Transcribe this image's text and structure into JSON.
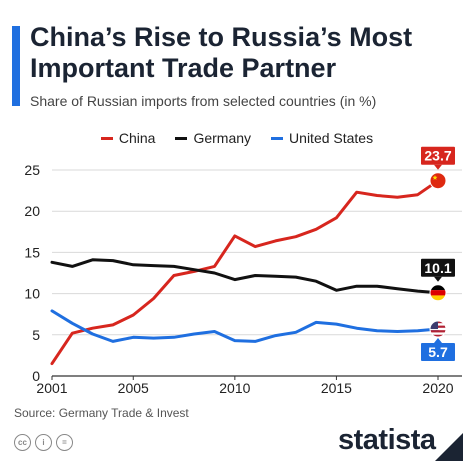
{
  "header": {
    "title": "China’s Rise to Russia’s Most Important Trade Partner",
    "subtitle": "Share of Russian imports from selected countries (in %)"
  },
  "footer": {
    "source": "Source: Germany Trade & Invest",
    "brand": "statista",
    "license_icons": [
      "creative-commons-icon",
      "attribution-icon",
      "no-derivatives-icon"
    ],
    "license_glyphs": [
      "cc",
      "i",
      "="
    ]
  },
  "chart_data": {
    "type": "line",
    "x": [
      2001,
      2002,
      2003,
      2004,
      2005,
      2006,
      2007,
      2008,
      2009,
      2010,
      2011,
      2012,
      2013,
      2014,
      2015,
      2016,
      2017,
      2018,
      2019,
      2020
    ],
    "series": [
      {
        "name": "China",
        "color": "#d7261e",
        "values": [
          1.5,
          5.2,
          5.8,
          6.2,
          7.4,
          9.4,
          12.2,
          12.7,
          13.3,
          17.0,
          15.7,
          16.4,
          16.9,
          17.8,
          19.2,
          22.3,
          21.9,
          21.7,
          22.0,
          23.7
        ],
        "end_label": "23.7",
        "flag": "china-flag-icon"
      },
      {
        "name": "Germany",
        "color": "#111111",
        "values": [
          13.8,
          13.3,
          14.1,
          14.0,
          13.5,
          13.4,
          13.3,
          12.9,
          12.5,
          11.7,
          12.2,
          12.1,
          12.0,
          11.5,
          10.4,
          10.9,
          10.9,
          10.6,
          10.3,
          10.1
        ],
        "end_label": "10.1",
        "flag": "germany-flag-icon"
      },
      {
        "name": "United States",
        "color": "#1f6fe0",
        "values": [
          7.9,
          6.4,
          5.1,
          4.2,
          4.7,
          4.6,
          4.7,
          5.1,
          5.4,
          4.3,
          4.2,
          4.9,
          5.3,
          6.5,
          6.3,
          5.8,
          5.5,
          5.4,
          5.5,
          5.7
        ],
        "end_label": "5.7",
        "flag": "usa-flag-icon"
      }
    ],
    "y_ticks": [
      0,
      5,
      10,
      15,
      20,
      25
    ],
    "x_ticks": [
      2001,
      2005,
      2010,
      2015,
      2020
    ],
    "ylim": [
      0,
      25
    ],
    "xlim": [
      2001,
      2020
    ],
    "grid": "horizontal",
    "legend_position": "top-center"
  }
}
